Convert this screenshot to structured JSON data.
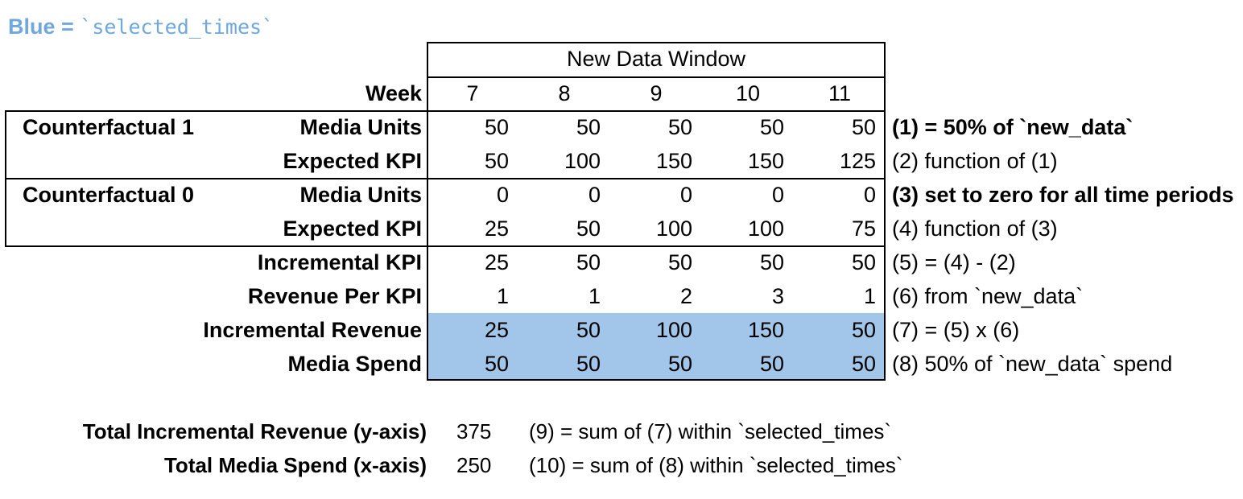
{
  "legend": {
    "prefix": "Blue = ",
    "code": "`selected_times`"
  },
  "colors": {
    "highlight": "#A2C6E9",
    "legend_text": "#6FA8DC"
  },
  "table": {
    "header": "New Data Window",
    "week_label": "Week",
    "weeks": [
      "7",
      "8",
      "9",
      "10",
      "11"
    ],
    "rows": [
      {
        "group": "Counterfactual 1",
        "label": "Media Units",
        "values": [
          "50",
          "50",
          "50",
          "50",
          "50"
        ],
        "note": "(1) = 50% of `new_data`"
      },
      {
        "group": "",
        "label": "Expected KPI",
        "values": [
          "50",
          "100",
          "150",
          "150",
          "125"
        ],
        "note": "(2) function of (1)"
      },
      {
        "group": "Counterfactual 0",
        "label": "Media Units",
        "values": [
          "0",
          "0",
          "0",
          "0",
          "0"
        ],
        "note": "(3) set to zero for all time periods"
      },
      {
        "group": "",
        "label": "Expected KPI",
        "values": [
          "25",
          "50",
          "100",
          "100",
          "75"
        ],
        "note": "(4) function of (3)"
      },
      {
        "group": "",
        "label": "Incremental KPI",
        "values": [
          "25",
          "50",
          "50",
          "50",
          "50"
        ],
        "note": "(5) = (4) - (2)"
      },
      {
        "group": "",
        "label": "Revenue Per KPI",
        "values": [
          "1",
          "1",
          "2",
          "3",
          "1"
        ],
        "note": "(6) from `new_data`"
      },
      {
        "group": "",
        "label": "Incremental Revenue",
        "values": [
          "25",
          "50",
          "100",
          "150",
          "50"
        ],
        "note": "(7) = (5) x (6)"
      },
      {
        "group": "",
        "label": "Media Spend",
        "values": [
          "50",
          "50",
          "50",
          "50",
          "50"
        ],
        "note": "(8) 50% of `new_data` spend"
      }
    ]
  },
  "summary": [
    {
      "label": "Total Incremental Revenue (y-axis)",
      "value": "375",
      "note": "(9) = sum of (7) within `selected_times`"
    },
    {
      "label": "Total Media Spend (x-axis)",
      "value": "250",
      "note": "(10) = sum of (8) within `selected_times`"
    }
  ],
  "chart_data": {
    "type": "table",
    "title": "New Data Window",
    "categories": [
      7,
      8,
      9,
      10,
      11
    ],
    "series": [
      {
        "name": "Counterfactual 1 Media Units",
        "values": [
          50,
          50,
          50,
          50,
          50
        ]
      },
      {
        "name": "Counterfactual 1 Expected KPI",
        "values": [
          50,
          100,
          150,
          150,
          125
        ]
      },
      {
        "name": "Counterfactual 0 Media Units",
        "values": [
          0,
          0,
          0,
          0,
          0
        ]
      },
      {
        "name": "Counterfactual 0 Expected KPI",
        "values": [
          25,
          50,
          100,
          100,
          75
        ]
      },
      {
        "name": "Incremental KPI",
        "values": [
          25,
          50,
          50,
          50,
          50
        ]
      },
      {
        "name": "Revenue Per KPI",
        "values": [
          1,
          1,
          2,
          3,
          1
        ]
      },
      {
        "name": "Incremental Revenue",
        "values": [
          25,
          50,
          100,
          150,
          50
        ]
      },
      {
        "name": "Media Spend",
        "values": [
          50,
          50,
          50,
          50,
          50
        ]
      }
    ],
    "totals": {
      "total_incremental_revenue": 375,
      "total_media_spend": 250
    }
  }
}
